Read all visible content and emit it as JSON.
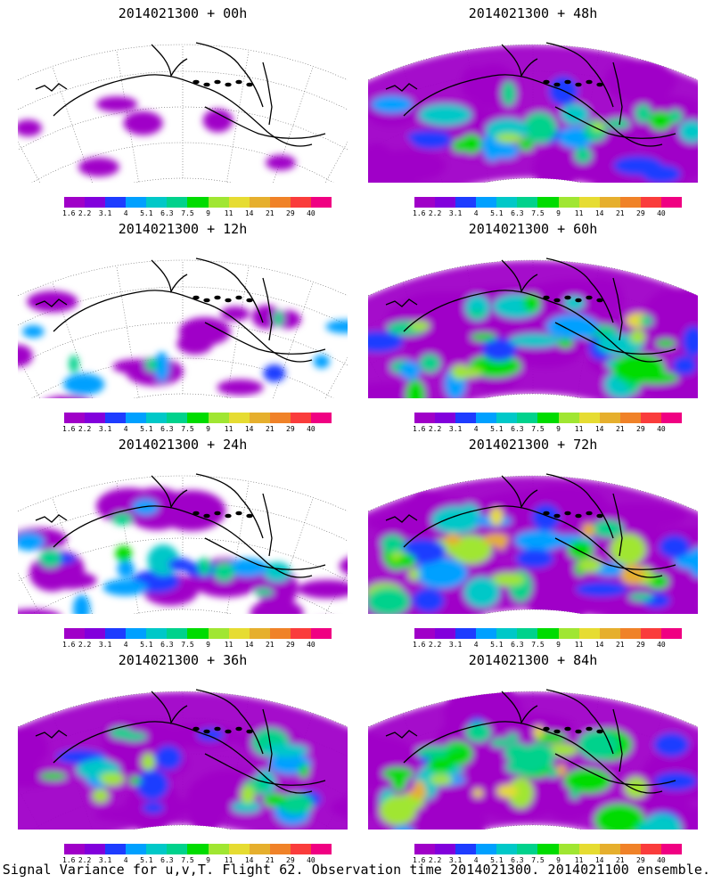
{
  "panels": [
    {
      "title": "2014021300 + 00h",
      "level": 0
    },
    {
      "title": "2014021300 + 48h",
      "level": 3
    },
    {
      "title": "2014021300 + 12h",
      "level": 1
    },
    {
      "title": "2014021300 + 60h",
      "level": 4
    },
    {
      "title": "2014021300 + 24h",
      "level": 2
    },
    {
      "title": "2014021300 + 72h",
      "level": 5
    },
    {
      "title": "2014021300 + 36h",
      "level": 3
    },
    {
      "title": "2014021300 + 84h",
      "level": 5
    }
  ],
  "colorbar": {
    "colors": [
      "#a000c8",
      "#8200dc",
      "#1e3cff",
      "#00a0ff",
      "#00c8c8",
      "#00d28c",
      "#00dc00",
      "#a0e632",
      "#e6dc32",
      "#e6af2d",
      "#f08228",
      "#fa3c3c",
      "#f00082"
    ],
    "labels": [
      "1.6",
      "2.2",
      "3.1",
      "4",
      "5.1",
      "6.3",
      "7.5",
      "9",
      "11",
      "14",
      "21",
      "29",
      "40"
    ]
  },
  "caption": "Signal Variance for u,v,T. Flight 62. Observation time 2014021300. 2014021100 ensemble."
}
